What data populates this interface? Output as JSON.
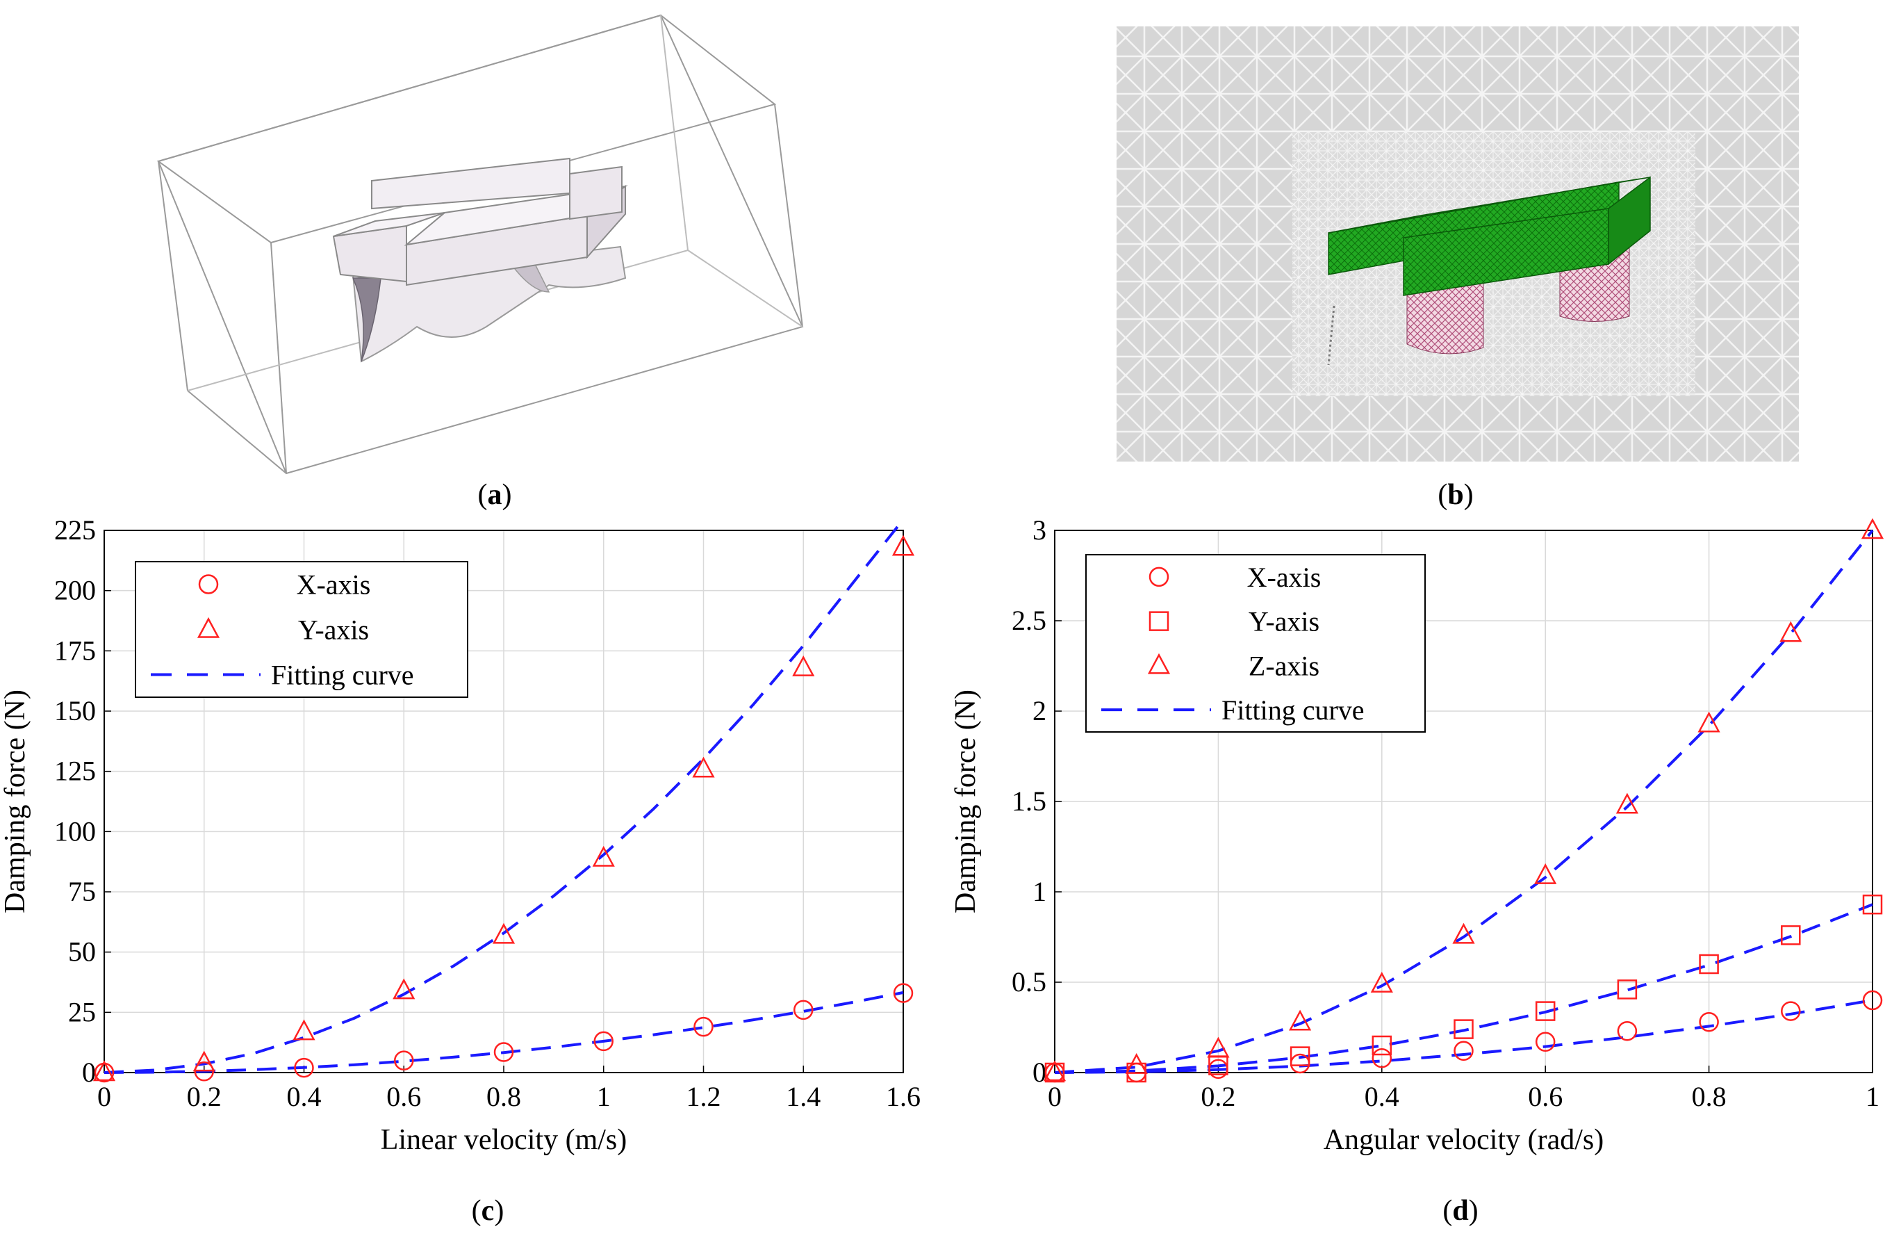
{
  "panels": {
    "a": {
      "caption": "a"
    },
    "b": {
      "caption": "b"
    },
    "c": {
      "caption": "c"
    },
    "d": {
      "caption": "d"
    }
  },
  "colors": {
    "marker": "#ff2020",
    "fit": "#1a1aff",
    "grid": "#d9d9d9",
    "mesh_green": "#1fa31f",
    "mesh_pink": "#c86b8c",
    "box_edge": "#9a9a9a",
    "solid": "#e6dfe6"
  },
  "chart_data": [
    {
      "panel": "c",
      "type": "scatter",
      "xlabel": "Linear velocity (m/s)",
      "ylabel": "Damping force (N)",
      "xlim": [
        0,
        1.6
      ],
      "ylim": [
        0,
        225
      ],
      "xticks": [
        "0",
        "0.2",
        "0.4",
        "0.6",
        "0.8",
        "1",
        "1.2",
        "1.4",
        "1.6"
      ],
      "yticks": [
        "0",
        "25",
        "50",
        "75",
        "100",
        "125",
        "150",
        "175",
        "200",
        "225"
      ],
      "grid": true,
      "legend_position": "top-left",
      "legend": [
        "X-axis",
        "Y-axis",
        "Fitting curve"
      ],
      "series": [
        {
          "name": "X-axis",
          "marker": "circle",
          "x": [
            0,
            0.2,
            0.4,
            0.6,
            0.8,
            1.0,
            1.2,
            1.4,
            1.6
          ],
          "y": [
            0,
            0.5,
            2,
            5,
            8.5,
            13,
            19,
            26,
            33
          ]
        },
        {
          "name": "Y-axis",
          "marker": "triangle",
          "x": [
            0,
            0.2,
            0.4,
            0.6,
            0.8,
            1.0,
            1.2,
            1.4,
            1.6
          ],
          "y": [
            0,
            4,
            17,
            34,
            57,
            89,
            126,
            168,
            218
          ]
        },
        {
          "name": "Fitting curve",
          "style": "dashed",
          "fit_of": "X-axis",
          "x": [
            0,
            0.1,
            0.2,
            0.3,
            0.4,
            0.5,
            0.6,
            0.7,
            0.8,
            0.9,
            1.0,
            1.1,
            1.2,
            1.3,
            1.4,
            1.5,
            1.6
          ],
          "y": [
            0,
            0.13,
            0.52,
            1.2,
            2.1,
            3.2,
            4.7,
            6.4,
            8.3,
            10.5,
            13,
            15.7,
            18.7,
            21.9,
            25.4,
            29.2,
            33.2
          ]
        },
        {
          "name": "Fitting curve",
          "style": "dashed",
          "fit_of": "Y-axis",
          "x": [
            0,
            0.1,
            0.2,
            0.3,
            0.4,
            0.5,
            0.6,
            0.7,
            0.8,
            0.9,
            1.0,
            1.1,
            1.2,
            1.3,
            1.4,
            1.5,
            1.6
          ],
          "y": [
            0,
            1.0,
            3.6,
            8.0,
            14.5,
            22.5,
            32.5,
            44.3,
            57.9,
            73.3,
            90.4,
            109.4,
            130.2,
            152.8,
            177.2,
            203.4,
            231.4
          ]
        }
      ]
    },
    {
      "panel": "d",
      "type": "scatter",
      "xlabel": "Angular velocity (rad/s)",
      "ylabel": "Damping force (N)",
      "xlim": [
        0,
        1
      ],
      "ylim": [
        0,
        3
      ],
      "xticks": [
        "0",
        "0.2",
        "0.4",
        "0.6",
        "0.8",
        "1"
      ],
      "yticks": [
        "0",
        "0.5",
        "1",
        "1.5",
        "2",
        "2.5",
        "3"
      ],
      "grid": true,
      "legend_position": "top-left",
      "legend": [
        "X-axis",
        "Y-axis",
        "Z-axis",
        "Fitting curve"
      ],
      "series": [
        {
          "name": "X-axis",
          "marker": "circle",
          "x": [
            0,
            0.1,
            0.2,
            0.3,
            0.4,
            0.5,
            0.6,
            0.7,
            0.8,
            0.9,
            1.0
          ],
          "y": [
            0,
            0,
            0.02,
            0.05,
            0.08,
            0.12,
            0.17,
            0.23,
            0.28,
            0.34,
            0.4
          ]
        },
        {
          "name": "Y-axis",
          "marker": "square",
          "x": [
            0,
            0.1,
            0.2,
            0.3,
            0.4,
            0.5,
            0.6,
            0.7,
            0.8,
            0.9,
            1.0
          ],
          "y": [
            0,
            0,
            0.04,
            0.09,
            0.15,
            0.24,
            0.34,
            0.46,
            0.6,
            0.76,
            0.93
          ]
        },
        {
          "name": "Z-axis",
          "marker": "triangle",
          "x": [
            0,
            0.1,
            0.2,
            0.3,
            0.4,
            0.5,
            0.6,
            0.7,
            0.8,
            0.9,
            1.0
          ],
          "y": [
            0,
            0.04,
            0.13,
            0.28,
            0.49,
            0.76,
            1.09,
            1.48,
            1.93,
            2.43,
            3.0
          ]
        },
        {
          "name": "Fitting curve",
          "style": "dashed",
          "fit_of": "X-axis",
          "x": [
            0,
            0.1,
            0.2,
            0.3,
            0.4,
            0.5,
            0.6,
            0.7,
            0.8,
            0.9,
            1.0
          ],
          "y": [
            0,
            0.004,
            0.016,
            0.036,
            0.064,
            0.1,
            0.144,
            0.196,
            0.256,
            0.324,
            0.4
          ]
        },
        {
          "name": "Fitting curve",
          "style": "dashed",
          "fit_of": "Y-axis",
          "x": [
            0,
            0.1,
            0.2,
            0.3,
            0.4,
            0.5,
            0.6,
            0.7,
            0.8,
            0.9,
            1.0
          ],
          "y": [
            0,
            0.009,
            0.037,
            0.084,
            0.149,
            0.233,
            0.335,
            0.456,
            0.595,
            0.753,
            0.93
          ]
        },
        {
          "name": "Fitting curve",
          "style": "dashed",
          "fit_of": "Z-axis",
          "x": [
            0,
            0.1,
            0.2,
            0.3,
            0.4,
            0.5,
            0.6,
            0.7,
            0.8,
            0.9,
            1.0
          ],
          "y": [
            0,
            0.03,
            0.12,
            0.27,
            0.48,
            0.75,
            1.08,
            1.47,
            1.92,
            2.43,
            3.0
          ]
        }
      ]
    }
  ]
}
